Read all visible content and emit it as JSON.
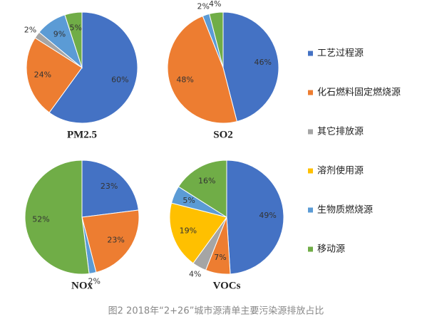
{
  "caption": "图2 2018年“2+26”城市源清单主要污染源排放占比",
  "chart_data": [
    {
      "type": "pie",
      "title": "PM2.5",
      "categories": [
        "工艺过程源",
        "化石燃料固定燃烧源",
        "其它排放源",
        "生物质燃烧源",
        "移动源"
      ],
      "values": [
        60,
        24,
        2,
        9,
        5
      ],
      "value_labels": [
        "60%",
        "24%",
        "2%",
        "9%",
        "5%"
      ],
      "colors": [
        "#4472c4",
        "#ed7d31",
        "#a5a5a5",
        "#5b9bd5",
        "#70ad47"
      ]
    },
    {
      "type": "pie",
      "title": "SO2",
      "categories": [
        "工艺过程源",
        "化石燃料固定燃烧源",
        "生物质燃烧源",
        "移动源"
      ],
      "values": [
        46,
        48,
        2,
        4
      ],
      "value_labels": [
        "46%",
        "48%",
        "2%",
        "4%"
      ],
      "colors": [
        "#4472c4",
        "#ed7d31",
        "#5b9bd5",
        "#70ad47"
      ]
    },
    {
      "type": "pie",
      "title": "NOx",
      "categories": [
        "工艺过程源",
        "化石燃料固定燃烧源",
        "生物质燃烧源",
        "移动源"
      ],
      "values": [
        23,
        23,
        2,
        52
      ],
      "value_labels": [
        "23%",
        "23%",
        "2%",
        "52%"
      ],
      "colors": [
        "#4472c4",
        "#ed7d31",
        "#5b9bd5",
        "#70ad47"
      ]
    },
    {
      "type": "pie",
      "title": "VOCs",
      "categories": [
        "工艺过程源",
        "化石燃料固定燃烧源",
        "其它排放源",
        "溶剂使用源",
        "生物质燃烧源",
        "移动源"
      ],
      "values": [
        49,
        7,
        4,
        19,
        5,
        16
      ],
      "value_labels": [
        "49%",
        "7%",
        "4%",
        "19%",
        "5%",
        "16%"
      ],
      "colors": [
        "#4472c4",
        "#ed7d31",
        "#a5a5a5",
        "#ffc000",
        "#5b9bd5",
        "#70ad47"
      ]
    }
  ]
}
